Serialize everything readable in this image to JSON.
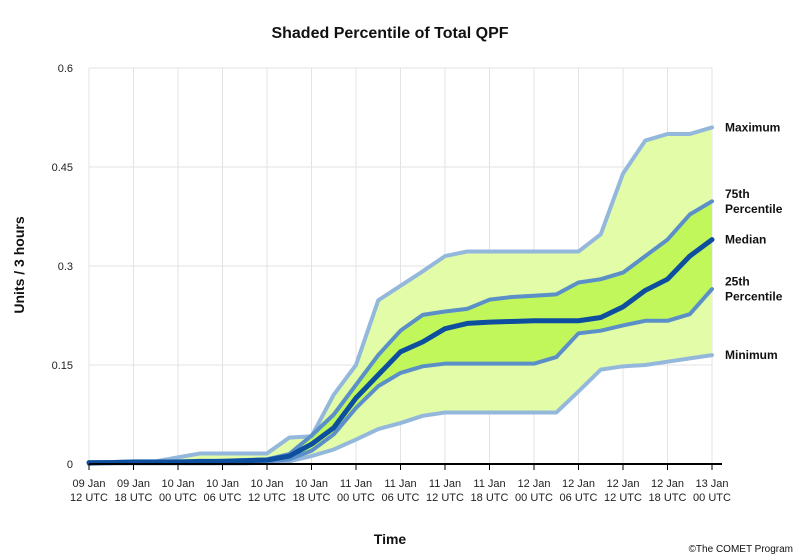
{
  "chart_data": {
    "type": "area",
    "title": "Shaded Percentile of Total QPF",
    "xlabel": "Time",
    "ylabel": "Units / 3 hours",
    "ylim": [
      0,
      0.6
    ],
    "yticks": [
      0,
      0.15,
      0.3,
      0.45,
      0.6
    ],
    "ytick_labels": [
      "0",
      "0.15",
      "0.3",
      "0.45",
      "0.6"
    ],
    "xticks": [
      {
        "index": 0,
        "line1": "09 Jan",
        "line2": "12 UTC"
      },
      {
        "index": 2,
        "line1": "09 Jan",
        "line2": "18 UTC"
      },
      {
        "index": 4,
        "line1": "10 Jan",
        "line2": "00 UTC"
      },
      {
        "index": 6,
        "line1": "10 Jan",
        "line2": "06 UTC"
      },
      {
        "index": 8,
        "line1": "10 Jan",
        "line2": "12 UTC"
      },
      {
        "index": 10,
        "line1": "10 Jan",
        "line2": "18 UTC"
      },
      {
        "index": 12,
        "line1": "11 Jan",
        "line2": "00 UTC"
      },
      {
        "index": 14,
        "line1": "11 Jan",
        "line2": "06 UTC"
      },
      {
        "index": 16,
        "line1": "11 Jan",
        "line2": "12 UTC"
      },
      {
        "index": 18,
        "line1": "11 Jan",
        "line2": "18 UTC"
      },
      {
        "index": 20,
        "line1": "12 Jan",
        "line2": "00 UTC"
      },
      {
        "index": 22,
        "line1": "12 Jan",
        "line2": "06 UTC"
      },
      {
        "index": 24,
        "line1": "12 Jan",
        "line2": "12 UTC"
      },
      {
        "index": 26,
        "line1": "12 Jan",
        "line2": "18 UTC"
      },
      {
        "index": 28,
        "line1": "13 Jan",
        "line2": "00 UTC"
      }
    ],
    "grid": true,
    "series": [
      {
        "name": "Maximum",
        "label_lines": [
          "Maximum"
        ],
        "color": "#94b8dc",
        "width": 4,
        "values": [
          0.002,
          0.003,
          0.004,
          0.004,
          0.01,
          0.016,
          0.016,
          0.016,
          0.016,
          0.04,
          0.042,
          0.105,
          0.15,
          0.248,
          0.27,
          0.292,
          0.315,
          0.322,
          0.322,
          0.322,
          0.322,
          0.322,
          0.322,
          0.348,
          0.44,
          0.49,
          0.5,
          0.5,
          0.51
        ]
      },
      {
        "name": "75th Percentile",
        "label_lines": [
          "75th",
          "Percentile"
        ],
        "color": "#5b8fc8",
        "width": 4,
        "values": [
          0.002,
          0.003,
          0.003,
          0.003,
          0.004,
          0.004,
          0.005,
          0.006,
          0.007,
          0.015,
          0.043,
          0.075,
          0.12,
          0.165,
          0.202,
          0.226,
          0.231,
          0.235,
          0.249,
          0.253,
          0.255,
          0.257,
          0.275,
          0.28,
          0.29,
          0.315,
          0.34,
          0.378,
          0.398
        ]
      },
      {
        "name": "Median",
        "label_lines": [
          "Median"
        ],
        "color": "#0d4f9e",
        "width": 5,
        "values": [
          0.002,
          0.002,
          0.003,
          0.003,
          0.003,
          0.004,
          0.004,
          0.005,
          0.006,
          0.012,
          0.03,
          0.055,
          0.1,
          0.135,
          0.17,
          0.185,
          0.205,
          0.213,
          0.215,
          0.216,
          0.217,
          0.217,
          0.217,
          0.222,
          0.238,
          0.263,
          0.28,
          0.315,
          0.34
        ]
      },
      {
        "name": "25th Percentile",
        "label_lines": [
          "25th",
          "Percentile"
        ],
        "color": "#5b8fc8",
        "width": 4,
        "values": [
          0.001,
          0.002,
          0.002,
          0.002,
          0.002,
          0.003,
          0.003,
          0.003,
          0.004,
          0.007,
          0.02,
          0.045,
          0.085,
          0.118,
          0.138,
          0.148,
          0.152,
          0.152,
          0.152,
          0.152,
          0.152,
          0.162,
          0.198,
          0.202,
          0.21,
          0.217,
          0.217,
          0.227,
          0.265
        ]
      },
      {
        "name": "Minimum",
        "label_lines": [
          "Minimum"
        ],
        "color": "#94b8dc",
        "width": 4,
        "values": [
          0.0,
          0.001,
          0.001,
          0.001,
          0.001,
          0.001,
          0.001,
          0.001,
          0.002,
          0.004,
          0.012,
          0.022,
          0.037,
          0.053,
          0.062,
          0.073,
          0.078,
          0.078,
          0.078,
          0.078,
          0.078,
          0.078,
          0.11,
          0.143,
          0.148,
          0.15,
          0.155,
          0.16,
          0.165
        ]
      }
    ],
    "fills": {
      "outer": "#e2fca8",
      "inner": "#c2f75c"
    }
  },
  "credit": "©The COMET Program"
}
